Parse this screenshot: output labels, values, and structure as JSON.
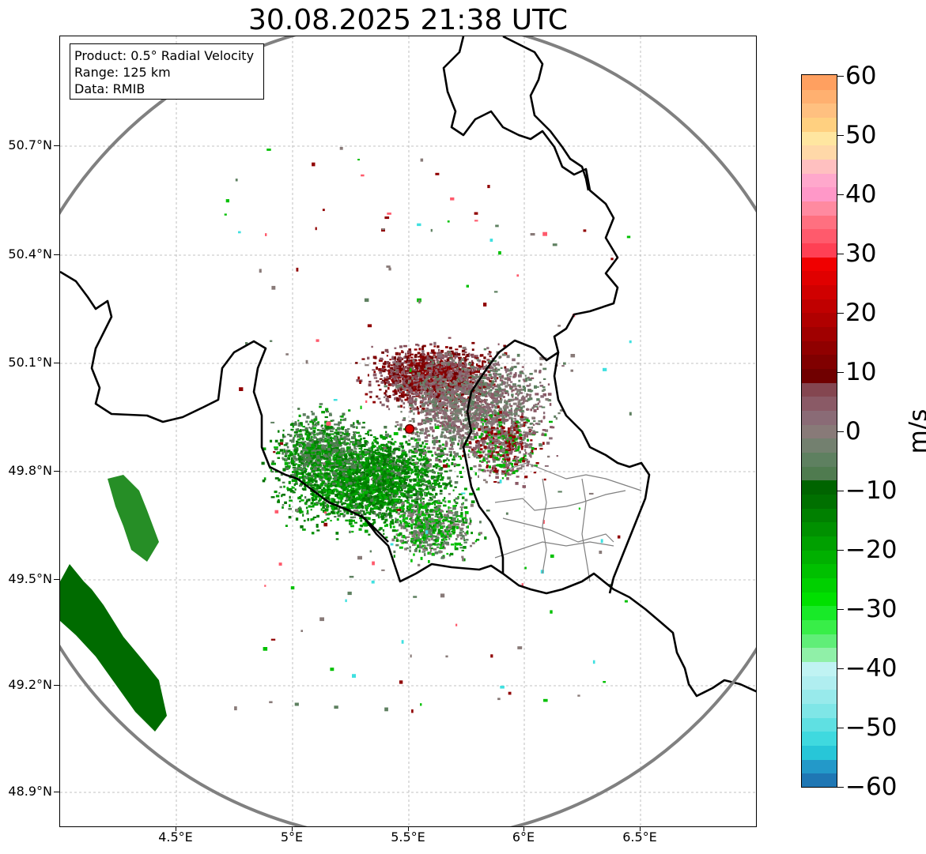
{
  "title": "30.08.2025 21:38 UTC",
  "info": {
    "product": "Product: 0.5° Radial Velocity",
    "range": "Range: 125 km",
    "source": "Data: RMIB"
  },
  "lat_ticks": [
    "50.7°N",
    "50.4°N",
    "50.1°N",
    "49.8°N",
    "49.5°N",
    "49.2°N",
    "48.9°N"
  ],
  "lon_ticks": [
    "4.5°E",
    "5°E",
    "5.5°E",
    "6°E",
    "6.5°E"
  ],
  "colorbar": {
    "unit": "m/s",
    "range": [
      -60,
      60
    ],
    "ticks": [
      "60",
      "50",
      "40",
      "30",
      "20",
      "10",
      "0",
      "−10",
      "−20",
      "−30",
      "−40",
      "−50",
      "−60"
    ],
    "colors": [
      "#1f77b4",
      "#2399c9",
      "#27c6d8",
      "#3fd9df",
      "#5fe0e2",
      "#7fe6e7",
      "#98eaeb",
      "#b0eef0",
      "#c0f3f3",
      "#90f0a8",
      "#60ee78",
      "#38ee48",
      "#18ea28",
      "#00e000",
      "#00d000",
      "#00c000",
      "#00b000",
      "#00a000",
      "#009000",
      "#008000",
      "#007000",
      "#006400",
      "#4f7b4f",
      "#5e8060",
      "#73806f",
      "#887a78",
      "#8a6b76",
      "#8a5a66",
      "#844650",
      "#700000",
      "#800000",
      "#900000",
      "#a00000",
      "#b00000",
      "#c00000",
      "#d00000",
      "#e00000",
      "#f00000",
      "#ff4054",
      "#ff5a6c",
      "#ff7080",
      "#ff8aa0",
      "#ff98c8",
      "#ffa8cc",
      "#ffc0c0",
      "#ffd8a8",
      "#ffe6a0",
      "#ffd080",
      "#ffc080",
      "#ffb070",
      "#ffa060"
    ]
  },
  "radar_site": {
    "lat": 49.91,
    "lon": 5.5
  },
  "colors": {
    "ring": "#808080",
    "border": "#000000",
    "admin": "#808080",
    "grid": "#b0b0b0",
    "site": "#e00000"
  }
}
